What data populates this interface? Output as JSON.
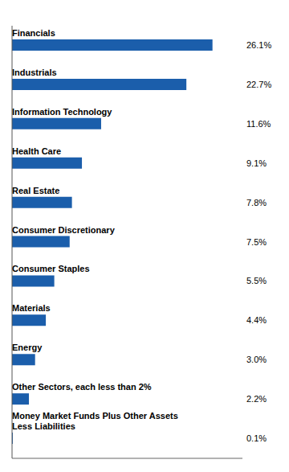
{
  "chart_data": {
    "type": "bar",
    "orientation": "horizontal",
    "categories": [
      "Financials",
      "Industrials",
      "Information Technology",
      "Health Care",
      "Real Estate",
      "Consumer Discretionary",
      "Consumer Staples",
      "Materials",
      "Energy",
      "Other Sectors, each less than 2%",
      "Money Market Funds Plus Other Assets\nLess Liabilities"
    ],
    "values": [
      26.1,
      22.7,
      11.6,
      9.1,
      7.8,
      7.5,
      5.5,
      4.4,
      3.0,
      2.2,
      0.1
    ],
    "value_labels": [
      "26.1%",
      "22.7%",
      "11.6%",
      "9.1%",
      "7.8%",
      "7.5%",
      "5.5%",
      "4.4%",
      "3.0%",
      "2.2%",
      "0.1%"
    ],
    "color": "#1b5eab",
    "xlim": [
      0,
      30
    ],
    "data_labels": true,
    "tick_labels": false
  }
}
